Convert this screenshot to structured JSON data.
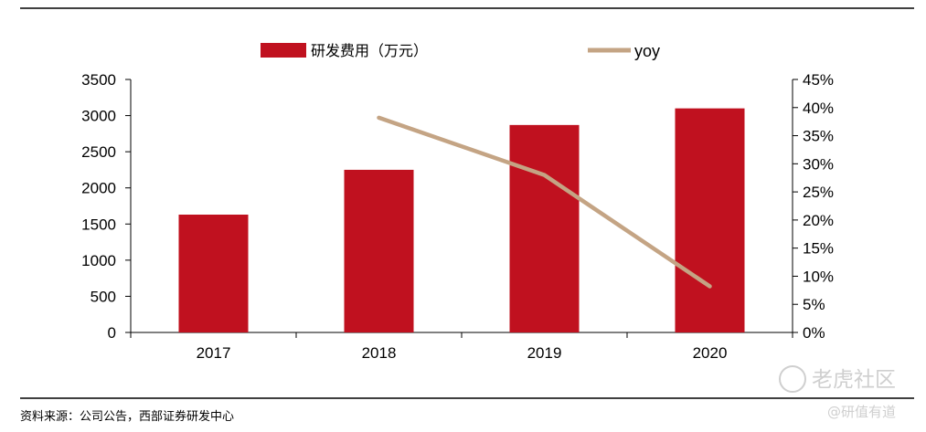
{
  "chart_data": {
    "type": "bar+line",
    "categories": [
      "2017",
      "2018",
      "2019",
      "2020"
    ],
    "series": [
      {
        "name": "研发费用（万元）",
        "type": "bar",
        "axis": "left",
        "values": [
          1630,
          2250,
          2870,
          3100
        ],
        "color": "#c0111f"
      },
      {
        "name": "yoy",
        "type": "line",
        "axis": "right",
        "values": [
          null,
          38.2,
          28.0,
          8.2
        ],
        "color": "#c4a484"
      }
    ],
    "left_axis": {
      "min": 0,
      "max": 3500,
      "step": 500,
      "ticks": [
        "0",
        "500",
        "1000",
        "1500",
        "2000",
        "2500",
        "3000",
        "3500"
      ]
    },
    "right_axis": {
      "min": 0,
      "max": 45,
      "step": 5,
      "ticks": [
        "0%",
        "5%",
        "10%",
        "15%",
        "20%",
        "25%",
        "30%",
        "35%",
        "40%",
        "45%"
      ]
    },
    "legend_position": "top",
    "grid": false
  },
  "source_note": "资料来源：公司公告，西部证券研发中心",
  "watermark": {
    "main": "老虎社区",
    "sub": "@研值有道"
  }
}
